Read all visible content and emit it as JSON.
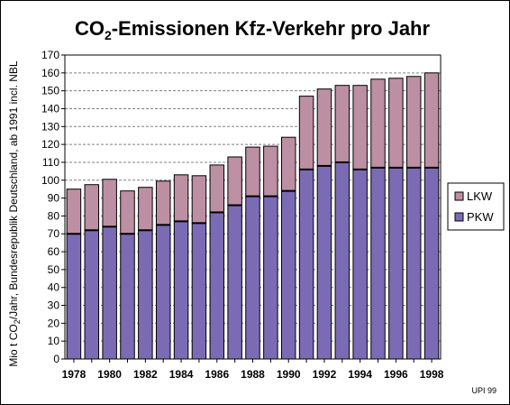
{
  "chart_data": {
    "type": "bar",
    "stacked": true,
    "title_main": "CO",
    "title_sub": "2",
    "title_rest": "-Emissionen Kfz-Verkehr pro Jahr",
    "ylabel_prefix": "Mio t CO",
    "ylabel_sub": "2",
    "ylabel_suffix": "/Jahr, Bundesrepublik Deutschland, ab 1991 incl. NBL",
    "credit": "UPI 99",
    "ylim": [
      0,
      170
    ],
    "yticks": [
      0,
      10,
      20,
      30,
      40,
      50,
      60,
      70,
      80,
      90,
      100,
      110,
      120,
      130,
      140,
      150,
      160,
      170
    ],
    "categories": [
      "1978",
      "1979",
      "1980",
      "1981",
      "1982",
      "1983",
      "1984",
      "1985",
      "1986",
      "1987",
      "1988",
      "1989",
      "1990",
      "1991",
      "1992",
      "1993",
      "1994",
      "1995",
      "1996",
      "1997",
      "1998"
    ],
    "xtick_labels": [
      "1978",
      "1980",
      "1982",
      "1984",
      "1986",
      "1988",
      "1990",
      "1992",
      "1994",
      "1996",
      "1998"
    ],
    "grid": "horizontal dashed",
    "legend_position": "right",
    "legend": [
      "LKW",
      "PKW"
    ],
    "series": [
      {
        "name": "PKW",
        "color": "#7b6bb5",
        "values": [
          70,
          72,
          74,
          70,
          72,
          75,
          77,
          76,
          82,
          86,
          91,
          91,
          94,
          106,
          108,
          110,
          106,
          107,
          107,
          107,
          107
        ]
      },
      {
        "name": "LKW",
        "color": "#bd8fa2",
        "values": [
          25,
          25.5,
          26.5,
          24,
          24,
          24.5,
          26,
          26.5,
          26.5,
          27,
          27.5,
          28,
          30,
          41,
          43,
          43,
          47,
          49.5,
          50,
          51,
          53
        ]
      }
    ]
  }
}
